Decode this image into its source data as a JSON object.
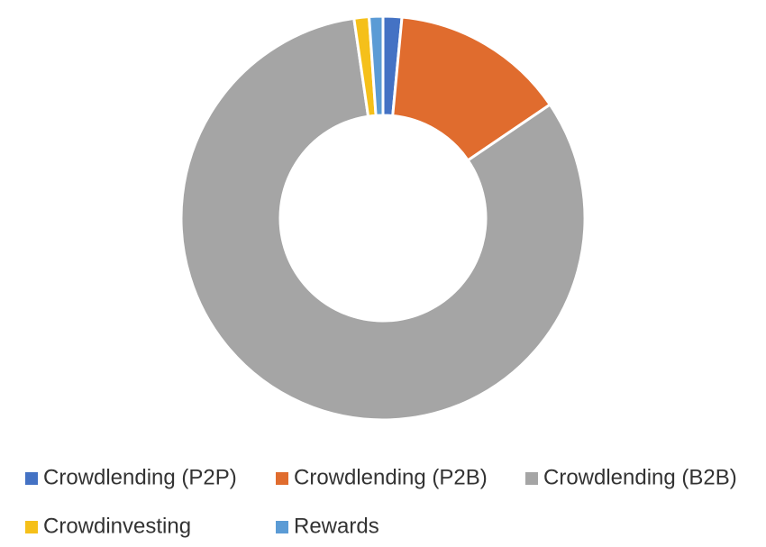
{
  "chart_data": {
    "type": "donut",
    "categories": [
      "Crowdlending (P2P)",
      "Crowdlending (P2B)",
      "Crowdlending (B2B)",
      "Crowdinvesting",
      "Rewards"
    ],
    "values": [
      1.5,
      14,
      82.2,
      1.2,
      1.1
    ],
    "colors": [
      "#4472c4",
      "#e06c2e",
      "#a5a5a5",
      "#f5c01a",
      "#5b9bd5"
    ],
    "legend": "bottom"
  }
}
